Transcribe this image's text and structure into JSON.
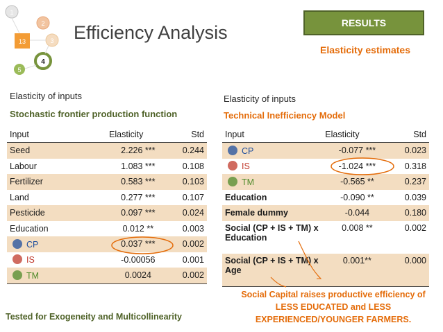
{
  "header": {
    "steps": [
      "1",
      "2",
      "13",
      "3",
      "4",
      "5"
    ],
    "title": "Efficiency Analysis",
    "badge": "RESULTS",
    "subtitle": "Elasticity estimates"
  },
  "left": {
    "heading": "Elasticity of inputs",
    "subheading": "Stochastic frontier production function",
    "columns": [
      "Input",
      "Elasticity",
      "Std"
    ],
    "rows": [
      [
        "Seed",
        "2.226 ***",
        "0.244"
      ],
      [
        "Labour",
        "1.083 ***",
        "0.108"
      ],
      [
        "Fertilizer",
        "0.583 ***",
        "0.103"
      ],
      [
        "Land",
        "0.277 ***",
        "0.107"
      ],
      [
        "Pesticide",
        "0.097 ***",
        "0.024"
      ],
      [
        "Education",
        "0.012 **",
        "0.003"
      ],
      [
        "CP",
        "0.037 ***",
        "0.002"
      ],
      [
        "IS",
        "-0.00056",
        "0.001"
      ],
      [
        "TM",
        "0.0024",
        "0.002"
      ]
    ]
  },
  "right": {
    "heading": "Elasticity of inputs",
    "subheading": "Technical Inefficiency Model",
    "columns": [
      "Input",
      "Elasticity",
      "Std"
    ],
    "rows": [
      [
        "CP",
        "-0.077 ***",
        "0.023"
      ],
      [
        "IS",
        "-1.024 ***",
        "0.318"
      ],
      [
        "TM",
        "-0.565 **",
        "0.237"
      ],
      [
        "Education",
        "-0.090 **",
        "0.039"
      ],
      [
        "Female dummy",
        "-0.044",
        "0.180"
      ],
      [
        "Social (CP + IS + TM) x Education",
        "0.008 **",
        "0.002"
      ],
      [
        "Social (CP + IS + TM) x  Age",
        "0.001**",
        "0.000"
      ]
    ]
  },
  "footer": "Tested for Exogeneity and Multicollinearity",
  "note": "Social Capital raises productive efficiency of LESS EDUCATED and LESS EXPERIENCED/YOUNGER FARMERS."
}
